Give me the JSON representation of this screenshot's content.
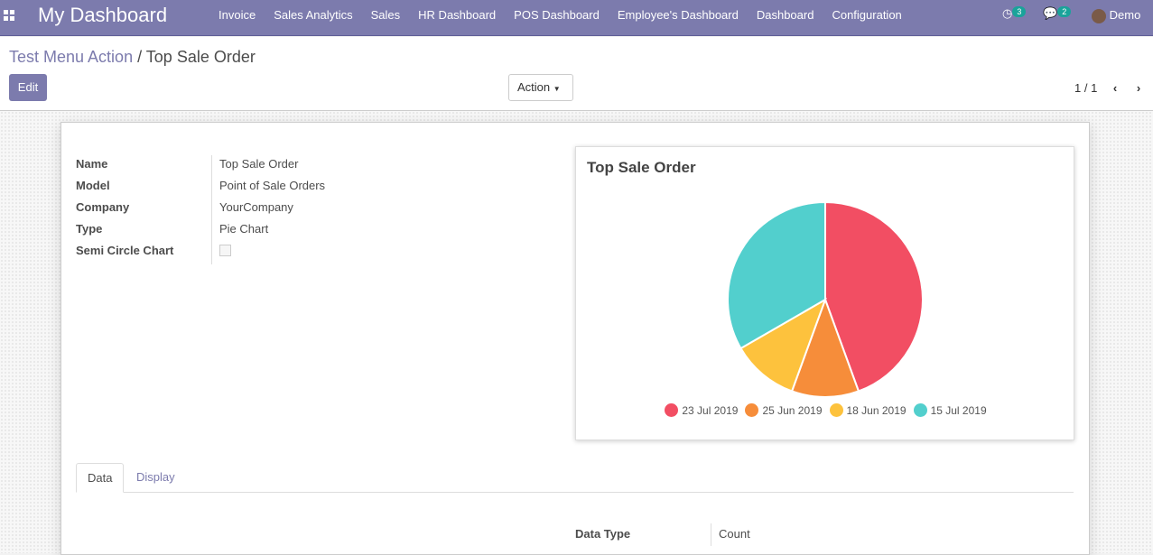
{
  "navbar": {
    "brand": "My Dashboard",
    "menu": [
      "Invoice",
      "Sales Analytics",
      "Sales",
      "HR Dashboard",
      "POS Dashboard",
      "Employee's Dashboard",
      "Dashboard",
      "Configuration"
    ],
    "activity_count": "3",
    "messages_count": "2",
    "user": "Demo"
  },
  "control_panel": {
    "breadcrumb_parent": "Test Menu Action",
    "breadcrumb_sep": "/",
    "breadcrumb_current": "Top Sale Order",
    "edit": "Edit",
    "action": "Action",
    "pager": "1 / 1"
  },
  "form": {
    "fields": [
      {
        "label": "Name",
        "value": "Top Sale Order"
      },
      {
        "label": "Model",
        "value": "Point of Sale Orders"
      },
      {
        "label": "Company",
        "value": "YourCompany"
      },
      {
        "label": "Type",
        "value": "Pie Chart"
      },
      {
        "label": "Semi Circle Chart",
        "value": ""
      }
    ],
    "tabs": [
      "Data",
      "Display"
    ],
    "data_type_label": "Data Type",
    "data_type_value": "Count"
  },
  "chart_data": {
    "type": "pie",
    "title": "Top Sale Order",
    "categories": [
      "23 Jul 2019",
      "25 Jun 2019",
      "18 Jun 2019",
      "15 Jul 2019"
    ],
    "values": [
      4,
      1,
      1,
      3
    ],
    "colors": [
      "#f24e63",
      "#f68d3a",
      "#fdc23d",
      "#52cfcd"
    ],
    "legend": "bottom"
  }
}
